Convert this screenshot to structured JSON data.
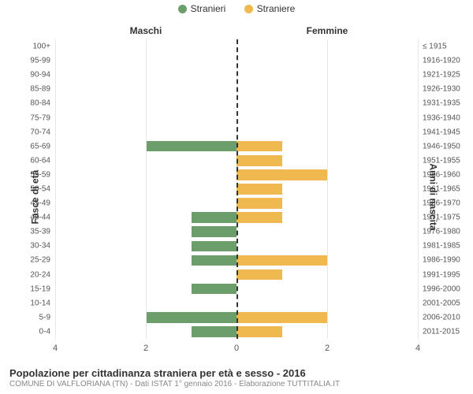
{
  "legend": {
    "left": {
      "label": "Stranieri",
      "color": "#6b9e6b"
    },
    "right": {
      "label": "Straniere",
      "color": "#f0b94f"
    }
  },
  "chart": {
    "type": "population-pyramid",
    "left_title": "Maschi",
    "right_title": "Femmine",
    "left_axis_title": "Fasce di età",
    "right_axis_title": "Anni di nascita",
    "xlim": 4,
    "xticks": [
      -4,
      -2,
      0,
      2,
      4
    ],
    "xtick_labels": [
      "4",
      "2",
      "0",
      "2",
      "4"
    ],
    "grid_color": "#e6e6e6",
    "zero_line_color": "#333333",
    "left_bar_color": "#6b9e6b",
    "right_bar_color": "#f0b94f",
    "background_color": "#ffffff",
    "rows": [
      {
        "age": "100+",
        "year": "≤ 1915",
        "m": 0,
        "f": 0
      },
      {
        "age": "95-99",
        "year": "1916-1920",
        "m": 0,
        "f": 0
      },
      {
        "age": "90-94",
        "year": "1921-1925",
        "m": 0,
        "f": 0
      },
      {
        "age": "85-89",
        "year": "1926-1930",
        "m": 0,
        "f": 0
      },
      {
        "age": "80-84",
        "year": "1931-1935",
        "m": 0,
        "f": 0
      },
      {
        "age": "75-79",
        "year": "1936-1940",
        "m": 0,
        "f": 0
      },
      {
        "age": "70-74",
        "year": "1941-1945",
        "m": 0,
        "f": 0
      },
      {
        "age": "65-69",
        "year": "1946-1950",
        "m": 2,
        "f": 1
      },
      {
        "age": "60-64",
        "year": "1951-1955",
        "m": 0,
        "f": 1
      },
      {
        "age": "55-59",
        "year": "1956-1960",
        "m": 0,
        "f": 2
      },
      {
        "age": "50-54",
        "year": "1961-1965",
        "m": 0,
        "f": 1
      },
      {
        "age": "45-49",
        "year": "1966-1970",
        "m": 0,
        "f": 1
      },
      {
        "age": "40-44",
        "year": "1971-1975",
        "m": 1,
        "f": 1
      },
      {
        "age": "35-39",
        "year": "1976-1980",
        "m": 1,
        "f": 0
      },
      {
        "age": "30-34",
        "year": "1981-1985",
        "m": 1,
        "f": 0
      },
      {
        "age": "25-29",
        "year": "1986-1990",
        "m": 1,
        "f": 2
      },
      {
        "age": "20-24",
        "year": "1991-1995",
        "m": 0,
        "f": 1
      },
      {
        "age": "15-19",
        "year": "1996-2000",
        "m": 1,
        "f": 0
      },
      {
        "age": "10-14",
        "year": "2001-2005",
        "m": 0,
        "f": 0
      },
      {
        "age": "5-9",
        "year": "2006-2010",
        "m": 2,
        "f": 2
      },
      {
        "age": "0-4",
        "year": "2011-2015",
        "m": 1,
        "f": 1
      }
    ]
  },
  "footer": {
    "title": "Popolazione per cittadinanza straniera per età e sesso - 2016",
    "subtitle": "COMUNE DI VALFLORIANA (TN) - Dati ISTAT 1° gennaio 2016 - Elaborazione TUTTITALIA.IT"
  }
}
